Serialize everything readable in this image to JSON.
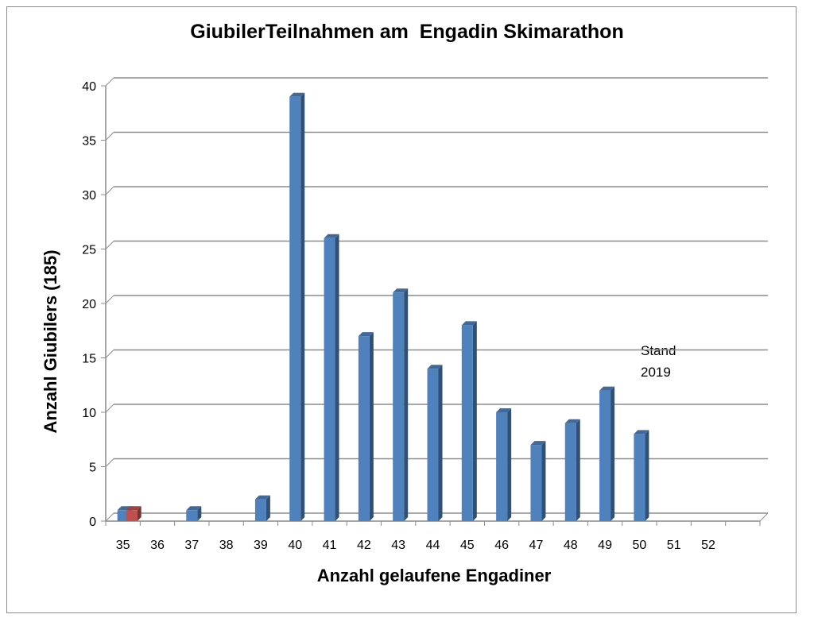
{
  "chart_data": {
    "type": "bar",
    "title": "GiubilerTeilnahmen am  Engadin Skimarathon",
    "xlabel": "Anzahl gelaufene Engadiner",
    "ylabel": "Anzahl Giubilers (185)",
    "ylim": [
      0,
      40
    ],
    "yticks": [
      "0",
      "5",
      "10",
      "15",
      "20",
      "25",
      "30",
      "35",
      "40"
    ],
    "categories": [
      "35",
      "36",
      "37",
      "38",
      "39",
      "40",
      "41",
      "42",
      "43",
      "44",
      "45",
      "46",
      "47",
      "48",
      "49",
      "50",
      "51",
      "52"
    ],
    "series": [
      {
        "color": "#4f81bd",
        "values": [
          1,
          0,
          1,
          0,
          2,
          39,
          26,
          17,
          21,
          14,
          18,
          10,
          7,
          9,
          12,
          8,
          0,
          0
        ]
      },
      {
        "color": "#c0504d",
        "values": [
          1,
          0,
          0,
          0,
          0,
          0,
          0,
          0,
          0,
          0,
          0,
          0,
          0,
          0,
          0,
          0,
          0,
          0
        ]
      }
    ],
    "grid": true,
    "annotation": [
      "Stand",
      "2019"
    ]
  }
}
